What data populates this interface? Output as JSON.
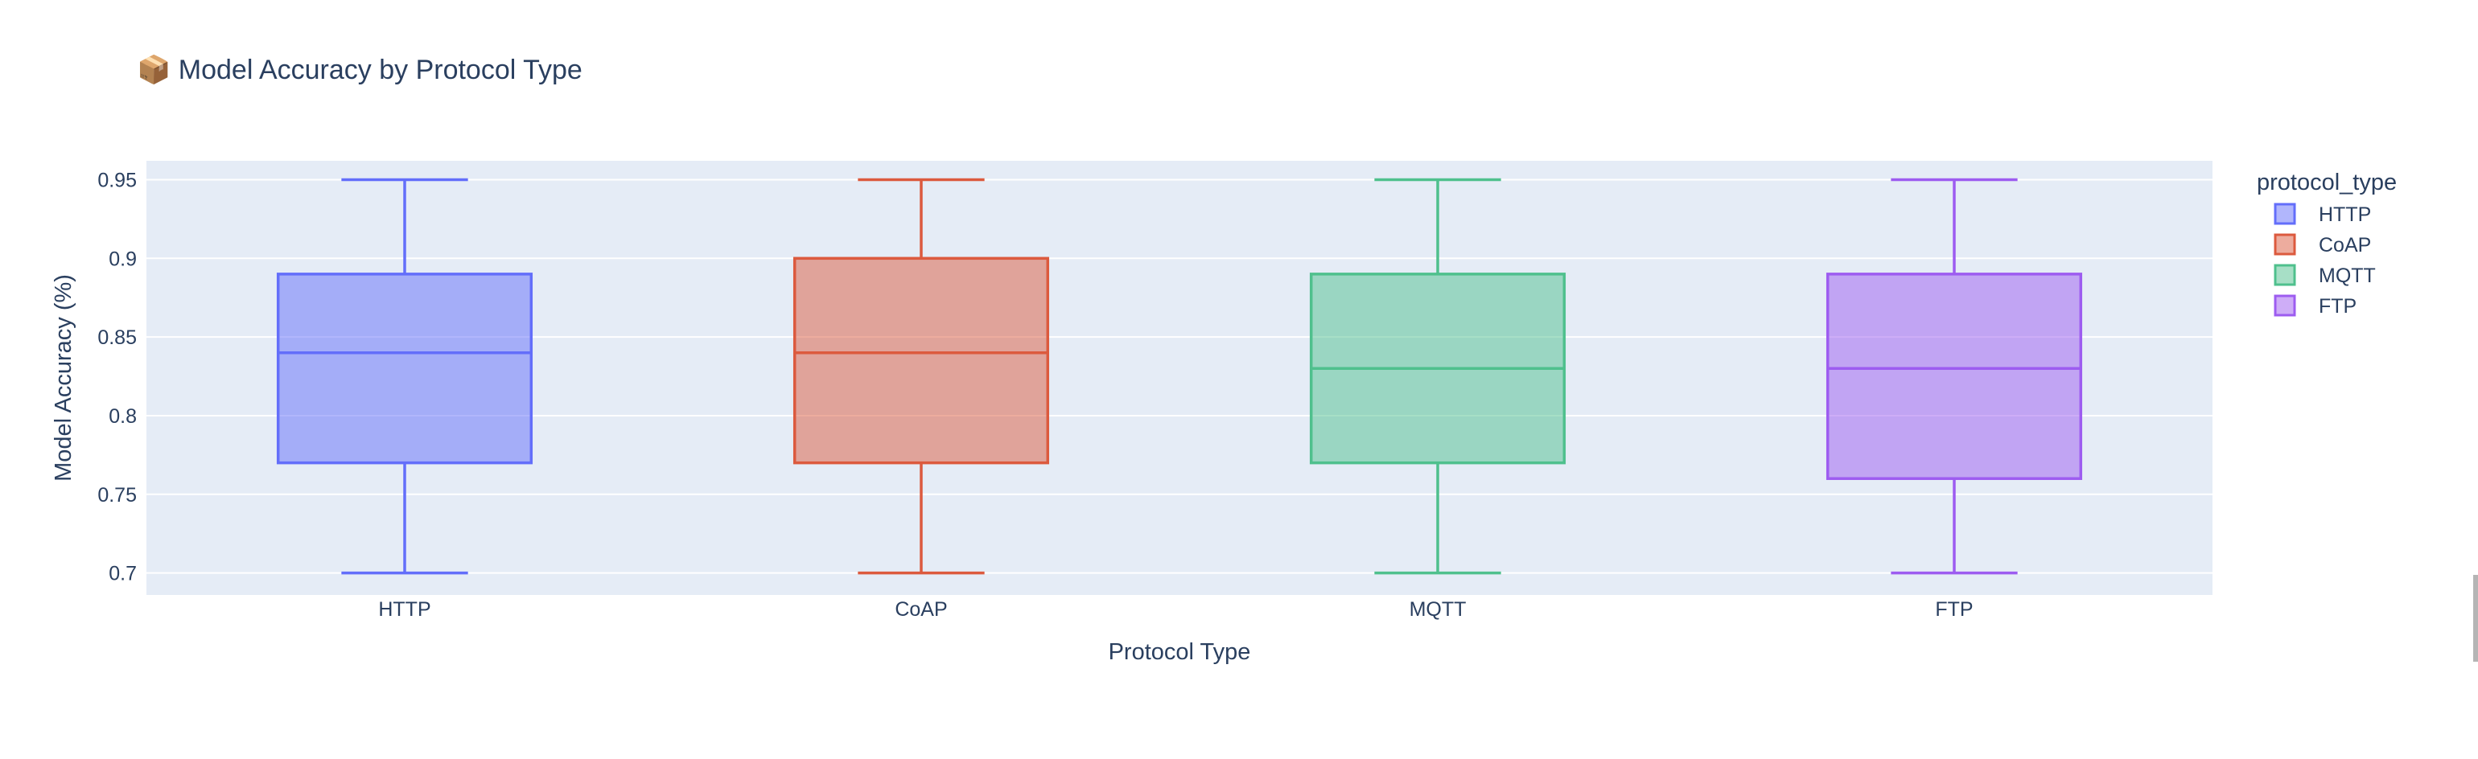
{
  "chart_data": {
    "type": "box",
    "title": "Model Accuracy by Protocol Type",
    "title_icon": "📦",
    "xlabel": "Protocol Type",
    "ylabel": "Model Accuracy (%)",
    "ylim": [
      0.686,
      0.962
    ],
    "yticks": [
      0.7,
      0.75,
      0.8,
      0.85,
      0.9,
      0.95
    ],
    "ytick_labels": [
      "0.7",
      "0.75",
      "0.8",
      "0.85",
      "0.9",
      "0.95"
    ],
    "categories": [
      "HTTP",
      "CoAP",
      "MQTT",
      "FTP"
    ],
    "grid": true,
    "legend_title": "protocol_type",
    "legend_position": "top-right",
    "series": [
      {
        "name": "HTTP",
        "color": "#636efa",
        "min": 0.7,
        "q1": 0.77,
        "median": 0.84,
        "q3": 0.89,
        "max": 0.95
      },
      {
        "name": "CoAP",
        "color": "#dc5a3e",
        "min": 0.7,
        "q1": 0.77,
        "median": 0.84,
        "q3": 0.9,
        "max": 0.95
      },
      {
        "name": "MQTT",
        "color": "#4fc08d",
        "min": 0.7,
        "q1": 0.77,
        "median": 0.83,
        "q3": 0.89,
        "max": 0.95
      },
      {
        "name": "FTP",
        "color": "#9d5cf0",
        "min": 0.7,
        "q1": 0.76,
        "median": 0.83,
        "q3": 0.89,
        "max": 0.95
      }
    ]
  }
}
